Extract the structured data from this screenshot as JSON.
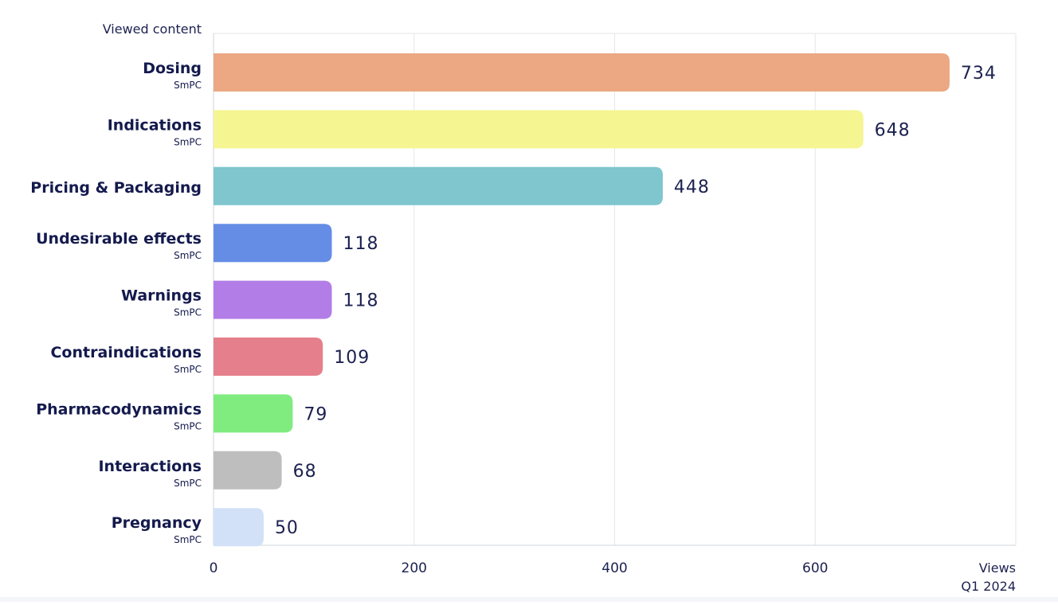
{
  "chart_data": {
    "type": "bar",
    "orientation": "horizontal",
    "y_title": "Viewed content",
    "x_title_line1": "Views",
    "x_title_line2": "Q1 2024",
    "xlim": [
      0,
      800
    ],
    "x_ticks": [
      0,
      200,
      400,
      600
    ],
    "grid": true,
    "categories": [
      {
        "label": "Dosing",
        "sublabel": "SmPC",
        "value": 734,
        "color": "#eba882"
      },
      {
        "label": "Indications",
        "sublabel": "SmPC",
        "value": 648,
        "color": "#f5f592"
      },
      {
        "label": "Pricing & Packaging",
        "sublabel": "",
        "value": 448,
        "color": "#7fc6ce"
      },
      {
        "label": "Undesirable effects",
        "sublabel": "SmPC",
        "value": 118,
        "color": "#658de6"
      },
      {
        "label": "Warnings",
        "sublabel": "SmPC",
        "value": 118,
        "color": "#b37de8"
      },
      {
        "label": "Contraindications",
        "sublabel": "SmPC",
        "value": 109,
        "color": "#e57f8b"
      },
      {
        "label": "Pharmacodynamics",
        "sublabel": "SmPC",
        "value": 79,
        "color": "#80ec80"
      },
      {
        "label": "Interactions",
        "sublabel": "SmPC",
        "value": 68,
        "color": "#bebebe"
      },
      {
        "label": "Pregnancy",
        "sublabel": "SmPC",
        "value": 50,
        "color": "#d2e1f7"
      }
    ]
  }
}
